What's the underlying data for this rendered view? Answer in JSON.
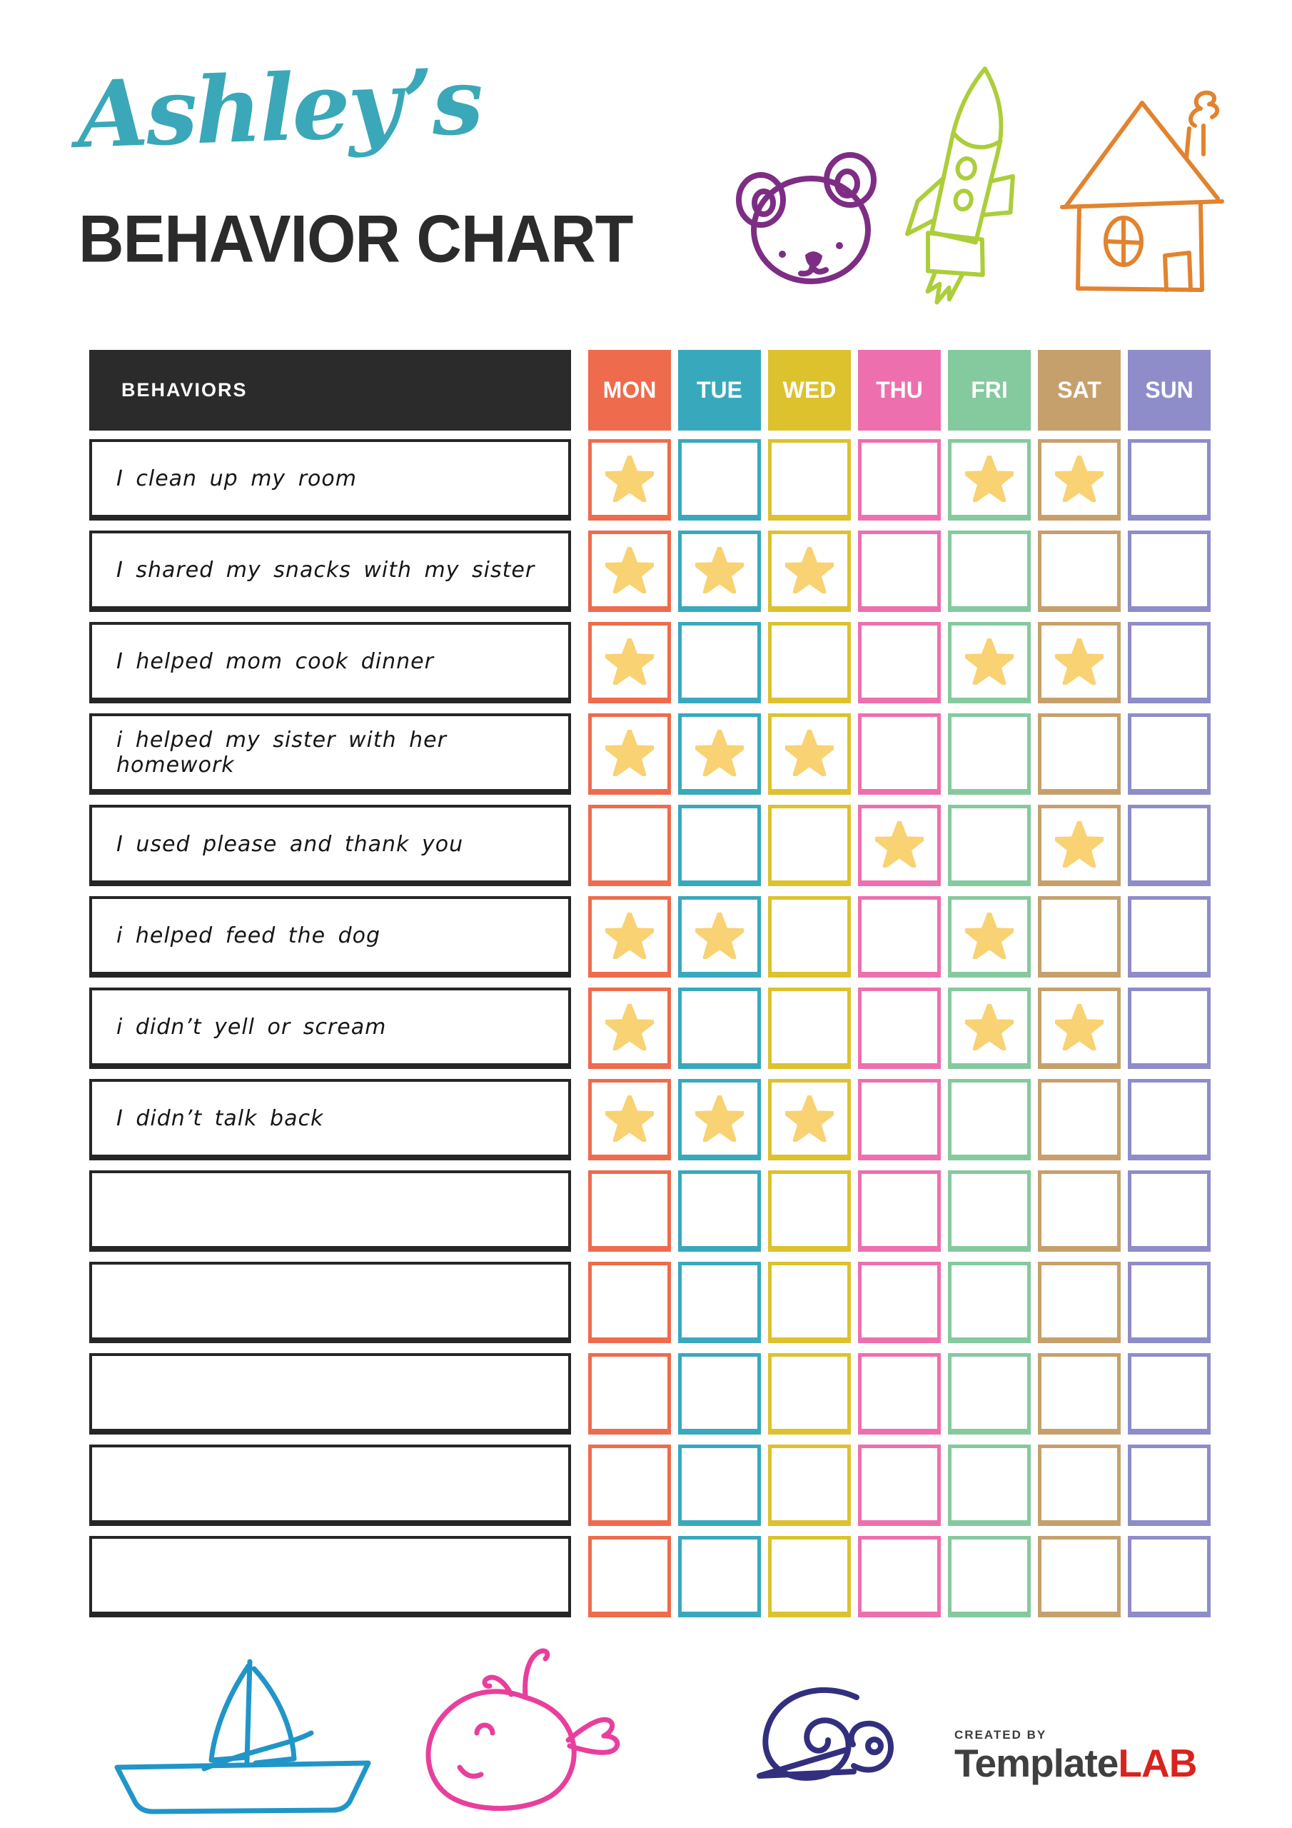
{
  "page": {
    "title_script": "Ashley’s",
    "title_main": "BEHAVIOR CHART"
  },
  "colors": {
    "teal": "#3aa8b8",
    "ink": "#2b2b2b",
    "star": "#f8d273",
    "bear": "#7e2d84",
    "rocket": "#abce3a",
    "house": "#e2832f",
    "boat": "#2095c8",
    "whale": "#e83f9c",
    "snail": "#32307e",
    "brand_gray": "#3f3f3f",
    "brand_red": "#d8231f"
  },
  "table": {
    "behaviors_header": "BEHAVIORS",
    "days": [
      {
        "label": "MON",
        "color": "#ee6b4d"
      },
      {
        "label": "TUE",
        "color": "#38a9bd"
      },
      {
        "label": "WED",
        "color": "#ddc12d"
      },
      {
        "label": "THU",
        "color": "#ee6fae"
      },
      {
        "label": "FRI",
        "color": "#85c99e"
      },
      {
        "label": "SAT",
        "color": "#c6a06c"
      },
      {
        "label": "SUN",
        "color": "#8e8cc9"
      }
    ],
    "rows": [
      {
        "label": "I clean up my room",
        "stars": [
          1,
          0,
          0,
          0,
          1,
          1,
          0
        ]
      },
      {
        "label": "I shared my snacks with my sister",
        "stars": [
          1,
          1,
          1,
          0,
          0,
          0,
          0
        ]
      },
      {
        "label": "I helped mom cook dinner",
        "stars": [
          1,
          0,
          0,
          0,
          1,
          1,
          0
        ]
      },
      {
        "label": "i helped my sister with her homework",
        "stars": [
          1,
          1,
          1,
          0,
          0,
          0,
          0
        ]
      },
      {
        "label": "I used please and thank you",
        "stars": [
          0,
          0,
          0,
          1,
          0,
          1,
          0
        ]
      },
      {
        "label": "i helped feed the dog",
        "stars": [
          1,
          1,
          0,
          0,
          1,
          0,
          0
        ]
      },
      {
        "label": "i didn’t yell or scream",
        "stars": [
          1,
          0,
          0,
          0,
          1,
          1,
          0
        ]
      },
      {
        "label": "I didn’t talk back",
        "stars": [
          1,
          1,
          1,
          0,
          0,
          0,
          0
        ]
      },
      {
        "label": "",
        "stars": [
          0,
          0,
          0,
          0,
          0,
          0,
          0
        ]
      },
      {
        "label": "",
        "stars": [
          0,
          0,
          0,
          0,
          0,
          0,
          0
        ]
      },
      {
        "label": "",
        "stars": [
          0,
          0,
          0,
          0,
          0,
          0,
          0
        ]
      },
      {
        "label": "",
        "stars": [
          0,
          0,
          0,
          0,
          0,
          0,
          0
        ]
      },
      {
        "label": "",
        "stars": [
          0,
          0,
          0,
          0,
          0,
          0,
          0
        ]
      }
    ]
  },
  "footer": {
    "created_by": "CREATED BY",
    "brand_name": "Template",
    "brand_suffix": "LAB"
  },
  "icons": {
    "top": [
      "bear-icon",
      "rocket-icon",
      "house-icon"
    ],
    "bottom": [
      "sailboat-icon",
      "whale-icon",
      "snail-icon"
    ]
  }
}
